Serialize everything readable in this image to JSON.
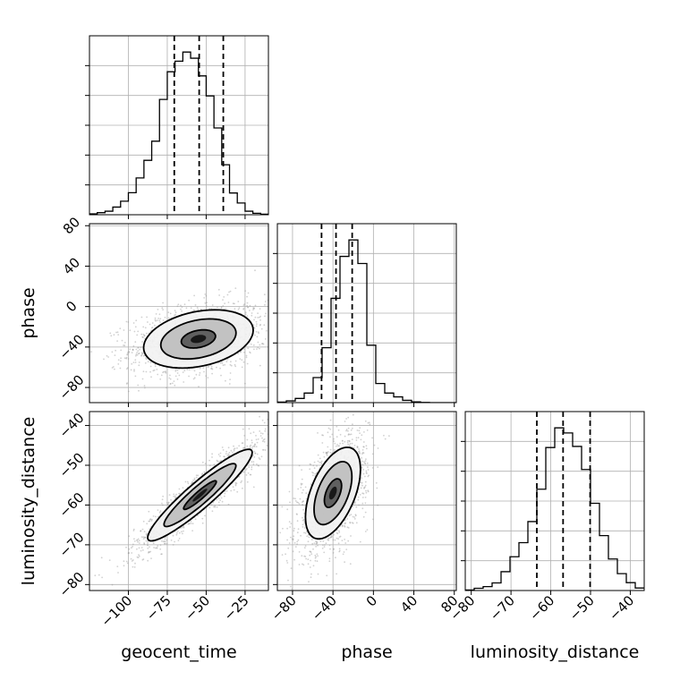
{
  "chart_data": {
    "type": "corner",
    "parameters": [
      "geocent_time",
      "phase",
      "luminosity_distance"
    ],
    "axis_labels": {
      "x": [
        "geocent_time",
        "phase",
        "luminosity_distance"
      ],
      "y": [
        "",
        "phase",
        "luminosity_distance"
      ]
    },
    "ranges": {
      "geocent_time": [
        -125,
        -10
      ],
      "phase": [
        -95,
        82
      ],
      "luminosity_distance": [
        -81.5,
        -36.5
      ]
    },
    "ticks": {
      "geocent_time": [
        -100,
        -75,
        -50,
        -25
      ],
      "phase": [
        -80,
        -40,
        0,
        40,
        80
      ],
      "luminosity_distance": [
        -80,
        -70,
        -60,
        -50,
        -40
      ]
    },
    "tick_labels": {
      "geocent_time": [
        "−100",
        "−75",
        "−50",
        "−25"
      ],
      "phase": [
        "−80",
        "−40",
        "0",
        "40",
        "80"
      ],
      "luminosity_distance": [
        "−80",
        "−70",
        "−60",
        "−50",
        "−40"
      ]
    },
    "grid": true,
    "colors": {
      "line": "#000000",
      "grid": "#b0b0b0",
      "points": "#9a9a9a"
    },
    "histograms": {
      "geocent_time": {
        "bin_start": -125,
        "bin_width": 5,
        "counts": [
          0.3,
          0.7,
          1.2,
          2.6,
          4.6,
          7.5,
          12.5,
          18.5,
          25.0,
          39.2,
          48.6,
          52.2,
          55.3,
          53.2,
          47.2,
          40.4,
          29.5,
          17.0,
          7.4,
          4.0,
          1.2,
          0.5,
          0.2
        ],
        "quantiles": [
          -70.5,
          -54.5,
          -39.0
        ]
      },
      "phase": {
        "bin_start": -95,
        "bin_width": 8.85,
        "counts": [
          0.3,
          0.9,
          2.2,
          5.0,
          13.1,
          28.7,
          54.5,
          76.4,
          85.0,
          72.7,
          30.0,
          10.0,
          5.0,
          3.0,
          1.2,
          0.4,
          0.1,
          0.0,
          0.0,
          0.0
        ],
        "quantiles": [
          -51.3,
          -37.0,
          -21.0
        ]
      },
      "luminosity_distance": {
        "bin_start": -81.5,
        "bin_width": 2.25,
        "counts": [
          0.2,
          0.8,
          1.4,
          2.7,
          6.7,
          12.0,
          17.0,
          24.5,
          36.0,
          50.8,
          57.8,
          56.0,
          51.2,
          43.0,
          31.0,
          19.5,
          11.2,
          6.0,
          2.8,
          0.9
        ],
        "quantiles": [
          -63.5,
          -56.9,
          -50.1
        ]
      }
    },
    "pairs": [
      {
        "x": "geocent_time",
        "y": "phase",
        "mean": [
          -55,
          -32
        ],
        "sigma": [
          22,
          18
        ],
        "correlation": 0.3,
        "contour_levels": [
          0.5,
          1.1,
          1.6
        ]
      },
      {
        "x": "geocent_time",
        "y": "luminosity_distance",
        "mean": [
          -54,
          -57.5
        ],
        "sigma": [
          21,
          7.2
        ],
        "correlation": 0.93,
        "contour_levels": [
          0.5,
          1.1,
          1.6
        ]
      },
      {
        "x": "phase",
        "y": "luminosity_distance",
        "mean": [
          -40,
          -57
        ],
        "sigma": [
          17,
          7.2
        ],
        "correlation": 0.52,
        "contour_levels": [
          0.5,
          1.1,
          1.6
        ]
      }
    ]
  }
}
